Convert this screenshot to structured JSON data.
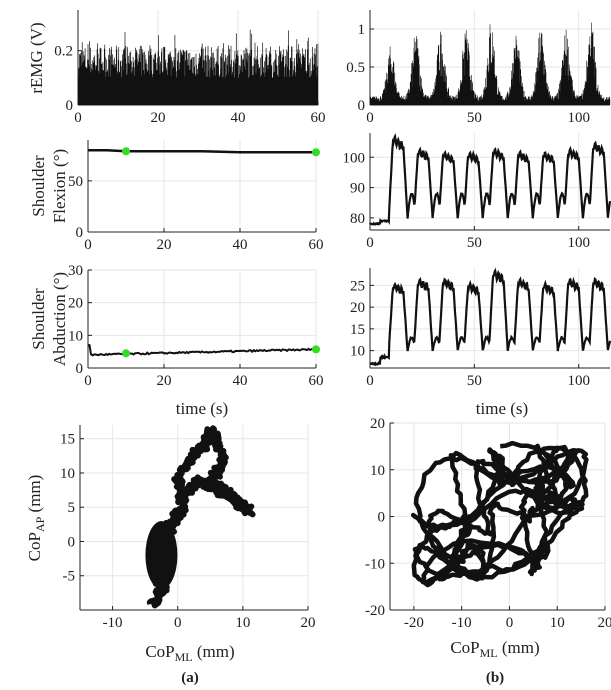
{
  "chart_data": [
    {
      "id": "a-remg",
      "type": "bar",
      "ylabel": "rEMG (V)",
      "xlim": [
        0,
        60
      ],
      "ylim": [
        0,
        0.35
      ],
      "xticks": [
        "0",
        "20",
        "40",
        "60"
      ],
      "yticks": [
        "0",
        "0.2"
      ],
      "envelope": {
        "x": [
          0,
          10,
          20,
          30,
          40,
          50,
          60
        ],
        "y": [
          0.27,
          0.28,
          0.27,
          0.27,
          0.28,
          0.27,
          0.27
        ]
      }
    },
    {
      "id": "b-remg",
      "type": "bar",
      "ylabel": "",
      "xlim": [
        0,
        115
      ],
      "ylim": [
        0,
        1.25
      ],
      "xticks": [
        "0",
        "50",
        "100"
      ],
      "yticks": [
        "0",
        "0.5",
        "1"
      ],
      "bursts_x": [
        10,
        22,
        34,
        46,
        58,
        70,
        82,
        94,
        106
      ],
      "bursts_peak": [
        0.75,
        0.95,
        1.0,
        1.0,
        1.15,
        0.95,
        1.05,
        1.0,
        1.15
      ]
    },
    {
      "id": "a-flex",
      "type": "line",
      "ylabel_lines": [
        "Shoulder",
        "Flexion (°)"
      ],
      "xlim": [
        0,
        60
      ],
      "ylim": [
        0,
        90
      ],
      "xticks": [
        "0",
        "20",
        "40",
        "60"
      ],
      "yticks": [
        "0",
        "50"
      ],
      "series": [
        {
          "x": [
            0,
            5,
            10,
            20,
            30,
            40,
            50,
            60
          ],
          "y": [
            80,
            80,
            79,
            79,
            79,
            78,
            78,
            78
          ]
        }
      ],
      "markers": {
        "x": [
          10,
          60
        ],
        "y": [
          79,
          78
        ],
        "color": "#33dd22"
      }
    },
    {
      "id": "b-flex",
      "type": "line",
      "ylabel": "",
      "xlim": [
        0,
        115
      ],
      "ylim": [
        76,
        108
      ],
      "xticks": [
        "0",
        "50",
        "100"
      ],
      "yticks": [
        "80",
        "90",
        "100"
      ],
      "cycles_x": [
        10,
        22,
        34,
        46,
        58,
        70,
        82,
        94,
        106
      ],
      "cycles_peak": [
        106,
        102,
        101,
        101,
        102,
        101,
        101,
        102,
        104
      ],
      "baseline": 80
    },
    {
      "id": "a-abd",
      "type": "line",
      "ylabel_lines": [
        "Shoulder",
        "Abduction (°)"
      ],
      "xlabel": "time (s)",
      "xlim": [
        0,
        60
      ],
      "ylim": [
        0,
        30
      ],
      "xticks": [
        "0",
        "20",
        "40",
        "60"
      ],
      "yticks": [
        "0",
        "10",
        "20",
        "30"
      ],
      "series": [
        {
          "x": [
            0,
            5,
            10,
            20,
            30,
            40,
            50,
            60
          ],
          "y": [
            4,
            4.2,
            4.5,
            5,
            5.3,
            5.5,
            5.6,
            5.7
          ]
        }
      ],
      "markers": {
        "x": [
          10,
          60
        ],
        "y": [
          4.5,
          5.7
        ],
        "color": "#33dd22"
      }
    },
    {
      "id": "b-abd",
      "type": "line",
      "ylabel": "",
      "xlabel": "time (s)",
      "xlim": [
        0,
        115
      ],
      "ylim": [
        6,
        29
      ],
      "xticks": [
        "0",
        "50",
        "100"
      ],
      "yticks": [
        "10",
        "15",
        "20",
        "25"
      ],
      "cycles_x": [
        10,
        22,
        34,
        46,
        58,
        70,
        82,
        94,
        106
      ],
      "cycles_peak": [
        25,
        26,
        26,
        25,
        28,
        26,
        25,
        26,
        26
      ],
      "baseline": 10
    },
    {
      "id": "a-cop",
      "type": "scatter",
      "ylabel": "CoP",
      "ylabel_sub": "AP",
      "ylabel_unit": " (mm)",
      "xlabel": "CoP",
      "xlabel_sub": "ML",
      "xlabel_unit": " (mm)",
      "panel": "(a)",
      "xlim": [
        -15,
        20
      ],
      "ylim": [
        -10,
        17
      ],
      "xticks": [
        "-10",
        "0",
        "10",
        "20"
      ],
      "yticks": [
        "-5",
        "0",
        "5",
        "10",
        "15"
      ],
      "path": {
        "x": [
          -4,
          -2,
          -3,
          -4,
          -1,
          1,
          0,
          2,
          4,
          5,
          6,
          7,
          6,
          4,
          5,
          8,
          10,
          11,
          9,
          7,
          5,
          3,
          1,
          0,
          -1,
          -2,
          -3,
          -3.5,
          -3,
          -2,
          -3
        ],
        "y": [
          -9.5,
          -7,
          -3,
          0,
          3,
          5,
          9,
          12,
          14,
          16,
          15,
          12,
          10,
          8,
          9,
          7,
          5,
          4.5,
          6,
          7,
          8,
          9,
          7,
          4,
          2,
          0,
          -2,
          -4,
          -6,
          -5,
          -8
        ]
      }
    },
    {
      "id": "b-cop",
      "type": "scatter",
      "xlabel": "CoP",
      "xlabel_sub": "ML",
      "xlabel_unit": " (mm)",
      "panel": "(b)",
      "xlim": [
        -25,
        20
      ],
      "ylim": [
        -20,
        20
      ],
      "xticks": [
        "-20",
        "-10",
        "0",
        "10",
        "20"
      ],
      "yticks": [
        "-20",
        "-10",
        "0",
        "10",
        "20"
      ]
    }
  ]
}
